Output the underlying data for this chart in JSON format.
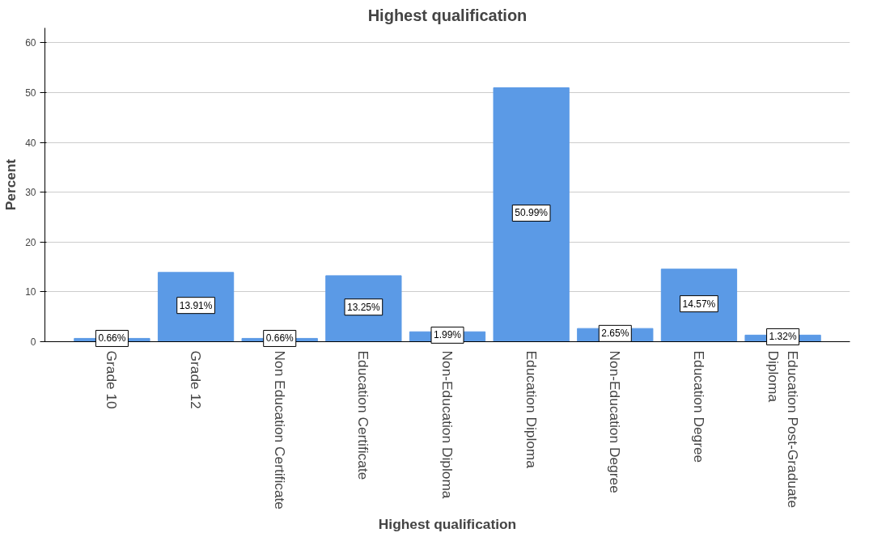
{
  "chart_data": {
    "type": "bar",
    "title": "Highest qualification",
    "xlabel": "Highest qualification",
    "ylabel": "Percent",
    "categories": [
      "Grade 10",
      "Grade 12",
      "Non Education Certificate",
      "Education Certificate",
      "Non-Education Diploma",
      "Education Diploma",
      "Non-Education Degree",
      "Education Degree",
      "Education Post-Graduate Diploma"
    ],
    "values": [
      0.66,
      13.91,
      0.66,
      13.25,
      1.99,
      50.99,
      2.65,
      14.57,
      1.32
    ],
    "value_labels": [
      "0.66%",
      "13.91%",
      "0.66%",
      "13.25%",
      "1.99%",
      "50.99%",
      "2.65%",
      "14.57%",
      "1.32%"
    ],
    "color": "#5b9ae6",
    "ylim": [
      0,
      63
    ],
    "yticks": [
      0,
      10,
      20,
      30,
      40,
      50,
      60
    ],
    "grid": "y"
  }
}
